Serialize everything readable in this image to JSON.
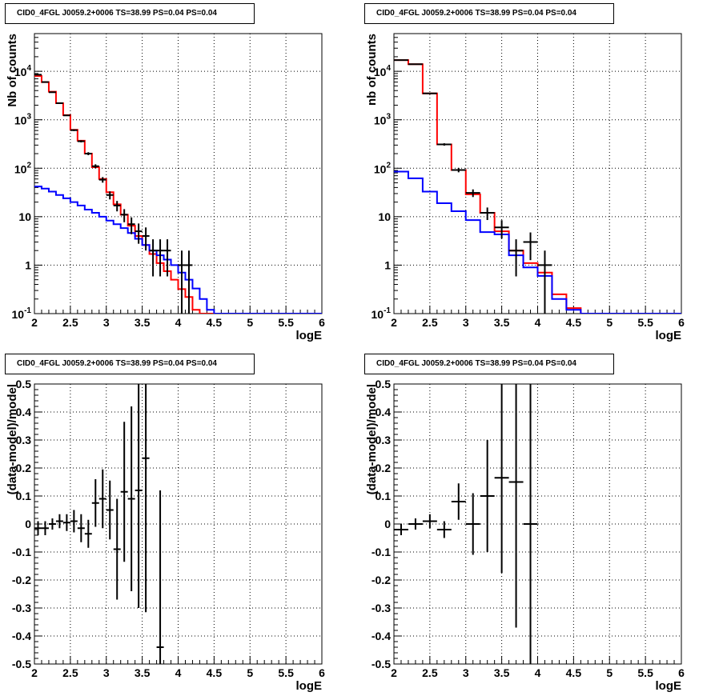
{
  "chart_data": [
    {
      "type": "histogram-step",
      "title": "CID0_4FGL J0059.2+0006 TS=38.99 PS=0.04 PS=0.04",
      "xlabel": "logE",
      "ylabel": "Nb of counts",
      "xlim": [
        2,
        6
      ],
      "ylim": [
        0.1,
        60000
      ],
      "yscale": "log",
      "grid": true,
      "x_ticks": [
        "2",
        "2.5",
        "3",
        "3.5",
        "4",
        "4.5",
        "5",
        "5.5",
        "6"
      ],
      "y_ticks": [
        "10^-1",
        "1",
        "10",
        "10^2",
        "10^3",
        "10^4"
      ],
      "bin_edges": [
        2.0,
        2.1,
        2.2,
        2.3,
        2.4,
        2.5,
        2.6,
        2.7,
        2.8,
        2.9,
        3.0,
        3.1,
        3.2,
        3.3,
        3.4,
        3.5,
        3.6,
        3.7,
        3.8,
        3.9,
        4.0,
        4.1,
        4.2,
        4.3,
        4.4,
        4.5,
        4.6,
        4.7,
        4.8,
        4.9,
        5.0,
        5.1,
        5.2,
        5.3,
        5.4,
        5.5,
        5.6,
        5.7,
        5.8,
        5.9,
        6.0
      ],
      "series": [
        {
          "color": "#ff0000",
          "values": [
            8000,
            6000,
            3800,
            2200,
            1250,
            620,
            370,
            200,
            105,
            60,
            32,
            18,
            11,
            6.5,
            4,
            2.6,
            1.7,
            1.1,
            0.75,
            0.5,
            0.32,
            0.22,
            0.12,
            0.1,
            0.1,
            0.1,
            0.1,
            0.1,
            0.1,
            0.1,
            0.1,
            0.1,
            0.1,
            0.1,
            0.1,
            0.1,
            0.1,
            0.1,
            0.1,
            0.1
          ]
        },
        {
          "color": "#0000ff",
          "values": [
            42,
            38,
            33,
            28,
            24,
            20,
            17,
            14,
            12,
            10,
            8.3,
            7,
            5.8,
            4.6,
            3.5,
            2.6,
            2,
            1.6,
            1.3,
            1,
            0.7,
            0.5,
            0.33,
            0.2,
            0.12,
            0.1,
            0.1,
            0.1,
            0.1,
            0.1,
            0.1,
            0.1,
            0.1,
            0.1,
            0.1,
            0.1,
            0.1,
            0.1,
            0.1,
            0.1
          ]
        }
      ],
      "points": [
        {
          "x": 2.05,
          "y": 8500
        },
        {
          "x": 2.15,
          "y": 6000
        },
        {
          "x": 2.25,
          "y": 3700
        },
        {
          "x": 2.35,
          "y": 2200
        },
        {
          "x": 2.45,
          "y": 1230
        },
        {
          "x": 2.55,
          "y": 610
        },
        {
          "x": 2.65,
          "y": 360
        },
        {
          "x": 2.75,
          "y": 200
        },
        {
          "x": 2.85,
          "y": 110
        },
        {
          "x": 2.95,
          "y": 58
        },
        {
          "x": 3.05,
          "y": 28
        },
        {
          "x": 3.15,
          "y": 17
        },
        {
          "x": 3.25,
          "y": 11
        },
        {
          "x": 3.35,
          "y": 7
        },
        {
          "x": 3.45,
          "y": 5
        },
        {
          "x": 3.55,
          "y": 4
        },
        {
          "x": 3.65,
          "y": 2
        },
        {
          "x": 3.75,
          "y": 2
        },
        {
          "x": 3.85,
          "y": 2
        },
        {
          "x": 4.05,
          "y": 1
        },
        {
          "x": 4.15,
          "y": 1
        }
      ]
    },
    {
      "type": "histogram-step",
      "title": "CID0_4FGL J0059.2+0006 TS=38.99 PS=0.04 PS=0.04",
      "xlabel": "logE",
      "ylabel": "nb of counts",
      "xlim": [
        2,
        6
      ],
      "ylim": [
        0.1,
        60000
      ],
      "yscale": "log",
      "grid": true,
      "x_ticks": [
        "2",
        "2.5",
        "3",
        "3.5",
        "4",
        "4.5",
        "5",
        "5.5",
        "6"
      ],
      "y_ticks": [
        "10^-1",
        "1",
        "10",
        "10^2",
        "10^3",
        "10^4"
      ],
      "bin_edges": [
        2.0,
        2.2,
        2.4,
        2.6,
        2.8,
        3.0,
        3.2,
        3.4,
        3.6,
        3.8,
        4.0,
        4.2,
        4.4,
        4.6,
        4.8,
        5.0,
        5.2,
        5.4,
        5.6,
        5.8,
        6.0
      ],
      "series": [
        {
          "color": "#ff0000",
          "values": [
            17000,
            14000,
            3500,
            310,
            92,
            29,
            12,
            5,
            2,
            1.1,
            0.7,
            0.25,
            0.13,
            0.1,
            0.1,
            0.1,
            0.1,
            0.1,
            0.1,
            0.1
          ]
        },
        {
          "color": "#0000ff",
          "values": [
            85,
            62,
            33,
            19,
            13,
            8.5,
            4.8,
            4.3,
            1.6,
            0.9,
            0.6,
            0.2,
            0.12,
            0.1,
            0.1,
            0.1,
            0.1,
            0.1,
            0.1,
            0.1
          ]
        }
      ],
      "points": [
        {
          "x": 2.1,
          "y": 17000
        },
        {
          "x": 2.3,
          "y": 14000
        },
        {
          "x": 2.5,
          "y": 3500
        },
        {
          "x": 2.7,
          "y": 310
        },
        {
          "x": 2.9,
          "y": 92
        },
        {
          "x": 3.1,
          "y": 31
        },
        {
          "x": 3.3,
          "y": 12
        },
        {
          "x": 3.5,
          "y": 6
        },
        {
          "x": 3.7,
          "y": 2
        },
        {
          "x": 3.9,
          "y": 3
        },
        {
          "x": 4.1,
          "y": 1
        }
      ]
    },
    {
      "type": "scatter-errorbar",
      "title": "CID0_4FGL J0059.2+0006 TS=38.99 PS=0.04 PS=0.04",
      "xlabel": "logE",
      "ylabel": "(data-model)/model",
      "xlim": [
        2,
        6
      ],
      "ylim": [
        -0.5,
        0.5
      ],
      "grid": true,
      "x_ticks": [
        "2",
        "2.5",
        "3",
        "3.5",
        "4",
        "4.5",
        "5",
        "5.5",
        "6"
      ],
      "y_ticks": [
        "-0.5",
        "-0.4",
        "-0.3",
        "-0.2",
        "-0.1",
        "0",
        "0.1",
        "0.2",
        "0.3",
        "0.4",
        "0.5"
      ],
      "xerr": 0.05,
      "points": [
        {
          "x": 2.05,
          "y": -0.015,
          "err": 0.025
        },
        {
          "x": 2.15,
          "y": -0.015,
          "err": 0.025
        },
        {
          "x": 2.25,
          "y": 0.0,
          "err": 0.02
        },
        {
          "x": 2.35,
          "y": 0.01,
          "err": 0.025
        },
        {
          "x": 2.45,
          "y": 0.005,
          "err": 0.03
        },
        {
          "x": 2.55,
          "y": 0.01,
          "err": 0.04
        },
        {
          "x": 2.65,
          "y": -0.015,
          "err": 0.05
        },
        {
          "x": 2.75,
          "y": -0.035,
          "err": 0.05
        },
        {
          "x": 2.85,
          "y": 0.075,
          "err": 0.085
        },
        {
          "x": 2.95,
          "y": 0.09,
          "err": 0.105
        },
        {
          "x": 3.05,
          "y": 0.05,
          "err": 0.105
        },
        {
          "x": 3.15,
          "y": -0.09,
          "err": 0.18
        },
        {
          "x": 3.25,
          "y": 0.115,
          "err": 0.25
        },
        {
          "x": 3.35,
          "y": 0.09,
          "err": 0.33
        },
        {
          "x": 3.45,
          "y": 0.12,
          "err": 0.42
        },
        {
          "x": 3.55,
          "y": 0.235,
          "err": 0.55
        },
        {
          "x": 3.75,
          "y": -0.44,
          "err": 0.56
        }
      ]
    },
    {
      "type": "scatter-errorbar",
      "title": "CID0_4FGL J0059.2+0006 TS=38.99 PS=0.04 PS=0.04",
      "xlabel": "logE",
      "ylabel": "(data-model)/model",
      "xlim": [
        2,
        6
      ],
      "ylim": [
        -0.5,
        0.5
      ],
      "grid": true,
      "x_ticks": [
        "2",
        "2.5",
        "3",
        "3.5",
        "4",
        "4.5",
        "5",
        "5.5",
        "6"
      ],
      "y_ticks": [
        "-0.5",
        "-0.4",
        "-0.3",
        "-0.2",
        "-0.1",
        "0",
        "0.1",
        "0.2",
        "0.3",
        "0.4",
        "0.5"
      ],
      "xerr": 0.1,
      "points": [
        {
          "x": 2.1,
          "y": -0.02,
          "err": 0.02
        },
        {
          "x": 2.3,
          "y": 0.0,
          "err": 0.02
        },
        {
          "x": 2.5,
          "y": 0.01,
          "err": 0.025
        },
        {
          "x": 2.7,
          "y": -0.02,
          "err": 0.03
        },
        {
          "x": 2.9,
          "y": 0.08,
          "err": 0.065
        },
        {
          "x": 3.1,
          "y": 0.0,
          "err": 0.11
        },
        {
          "x": 3.3,
          "y": 0.1,
          "err": 0.2
        },
        {
          "x": 3.5,
          "y": 0.165,
          "err": 0.34
        },
        {
          "x": 3.7,
          "y": 0.15,
          "err": 0.52
        },
        {
          "x": 3.9,
          "y": 0.0,
          "err": 0.6
        }
      ]
    }
  ]
}
